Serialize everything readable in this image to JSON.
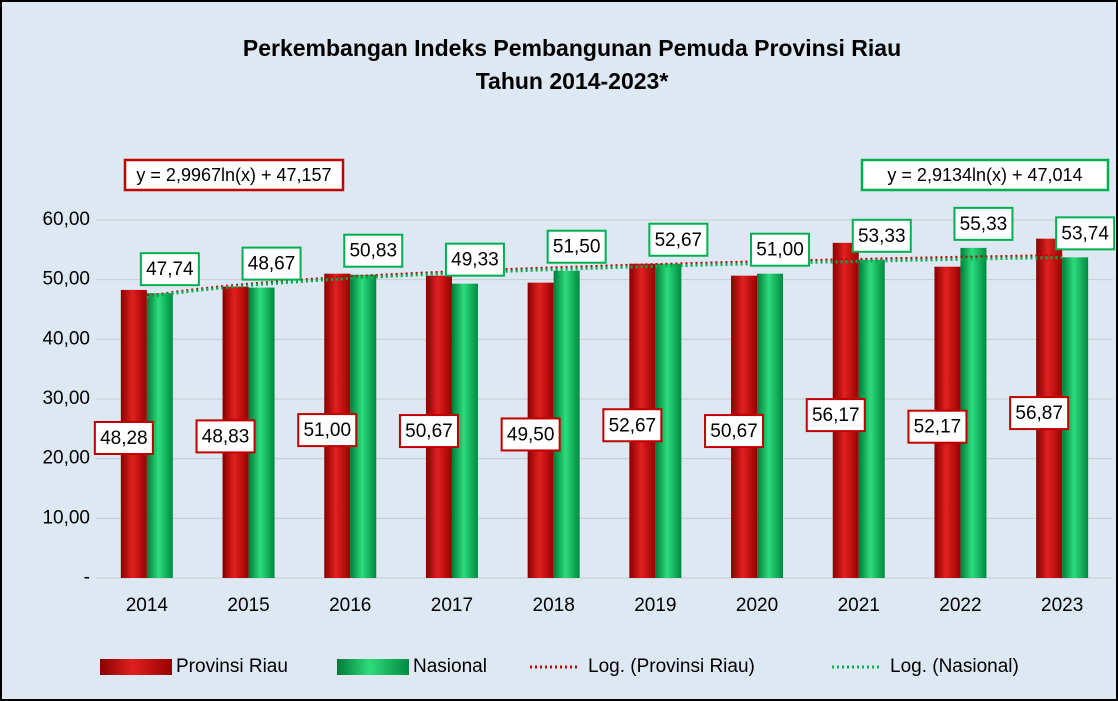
{
  "chart_data": {
    "type": "bar",
    "title": "Perkembangan Indeks Pembangunan Pemuda Provinsi Riau",
    "subtitle": "Tahun 2014-2023*",
    "categories": [
      "2014",
      "2015",
      "2016",
      "2017",
      "2018",
      "2019",
      "2020",
      "2021",
      "2022",
      "2023"
    ],
    "series": [
      {
        "name": "Provinsi Riau",
        "color": "#c00000",
        "values": [
          48.28,
          48.83,
          51.0,
          50.67,
          49.5,
          52.67,
          50.67,
          56.17,
          52.17,
          56.87
        ],
        "value_labels": [
          "48,28",
          "48,83",
          "51,00",
          "50,67",
          "49,50",
          "52,67",
          "50,67",
          "56,17",
          "52,17",
          "56,87"
        ]
      },
      {
        "name": "Nasional",
        "color": "#00b050",
        "values": [
          47.74,
          48.67,
          50.83,
          49.33,
          51.5,
          52.67,
          51.0,
          53.33,
          55.33,
          53.74
        ],
        "value_labels": [
          "47,74",
          "48,67",
          "50,83",
          "49,33",
          "51,50",
          "52,67",
          "51,00",
          "53,33",
          "55,33",
          "53,74"
        ]
      }
    ],
    "trendlines": [
      {
        "name": "Log. (Provinsi Riau)",
        "equation": "y = 2,9967ln(x) + 47,157",
        "color": "#c00000"
      },
      {
        "name": "Log. (Nasional)",
        "equation": "y = 2,9134ln(x) + 47,014",
        "color": "#00b050"
      }
    ],
    "ylim": [
      0,
      60
    ],
    "yticks": [
      {
        "value": 0,
        "label": "-"
      },
      {
        "value": 10,
        "label": "10,00"
      },
      {
        "value": 20,
        "label": "20,00"
      },
      {
        "value": 30,
        "label": "30,00"
      },
      {
        "value": 40,
        "label": "40,00"
      },
      {
        "value": 50,
        "label": "50,00"
      },
      {
        "value": 60,
        "label": "60,00"
      }
    ],
    "grid": true
  }
}
